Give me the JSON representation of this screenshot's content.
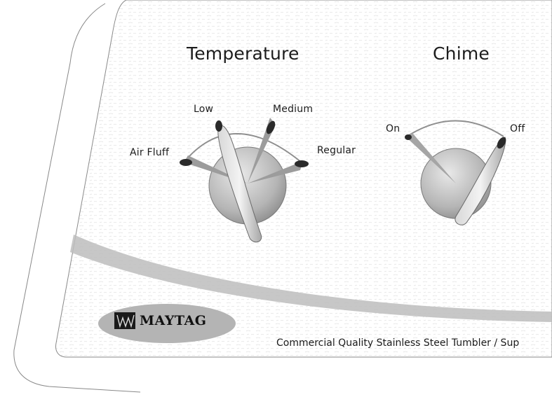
{
  "panel": {
    "brand": "MAYTAG",
    "tagline": "Commercial Quality Stainless Steel Tumbler / Sup"
  },
  "temperature": {
    "title": "Temperature",
    "positions": [
      "Air Fluff",
      "Low",
      "Medium",
      "Regular"
    ]
  },
  "chime": {
    "title": "Chime",
    "positions": [
      "On",
      "Off"
    ]
  },
  "colors": {
    "panel_fill": "#f4f4f4",
    "line": "#9a9a9a",
    "knob": "#c9c9c9",
    "knob_dark": "#8d8d8d",
    "indicator": "#2a2a2a",
    "swoosh": "#b8b8b8"
  }
}
